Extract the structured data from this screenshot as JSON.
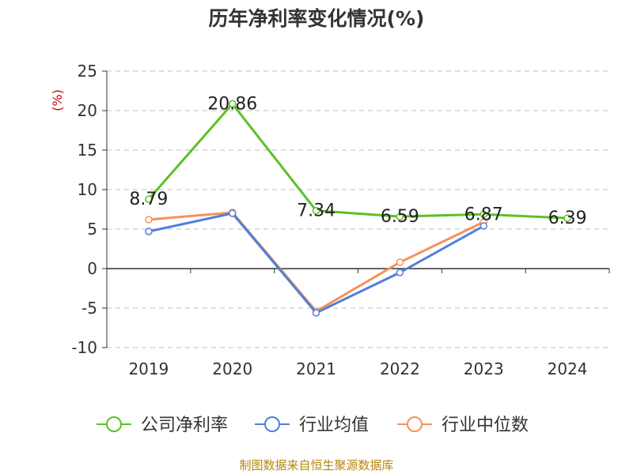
{
  "chart_data": {
    "type": "line",
    "title": "历年净利率变化情况(%)",
    "ylabel": "(%)",
    "categories": [
      "2019",
      "2020",
      "2021",
      "2022",
      "2023",
      "2024"
    ],
    "ylim": [
      -10,
      25
    ],
    "yticks": [
      25,
      20,
      15,
      10,
      5,
      0,
      -5,
      -10
    ],
    "ytick_labels": [
      "25",
      "20",
      "15",
      "10",
      "5",
      "0",
      "-5",
      "-10"
    ],
    "grid": true,
    "legend_position": "bottom",
    "series": [
      {
        "name": "公司净利率",
        "color": "#5bc225",
        "values": [
          8.79,
          20.86,
          7.34,
          6.59,
          6.87,
          6.39
        ],
        "labels": [
          "8.79",
          "20.86",
          "7.34",
          "6.59",
          "6.87",
          "6.39"
        ]
      },
      {
        "name": "行业均值",
        "color": "#4f7fdb",
        "values": [
          4.7,
          7.0,
          -5.6,
          -0.5,
          5.4,
          null
        ]
      },
      {
        "name": "行业中位数",
        "color": "#f5925a",
        "values": [
          6.2,
          7.1,
          -5.4,
          0.8,
          5.9,
          null
        ]
      }
    ]
  },
  "footer": {
    "source": "制图数据来自恒生聚源数据库"
  }
}
